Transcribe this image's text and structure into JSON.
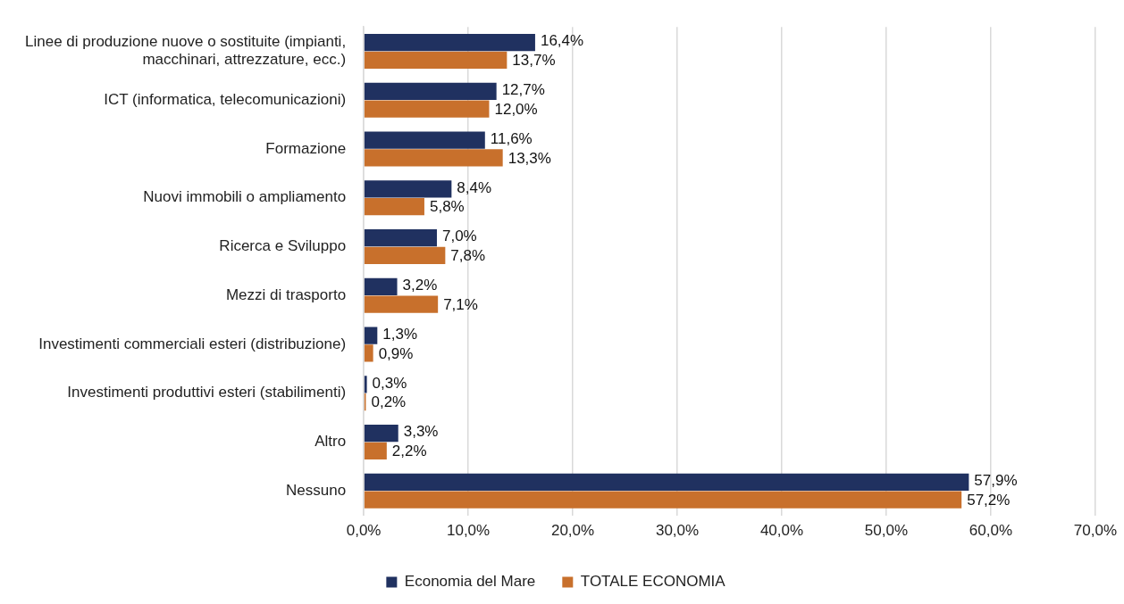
{
  "chart_data": {
    "type": "bar",
    "orientation": "horizontal",
    "categories": [
      "Linee di produzione nuove o sostituite (impianti, macchinari, attrezzature, ecc.)",
      "ICT (informatica, telecomunicazioni)",
      "Formazione",
      "Nuovi immobili o ampliamento",
      "Ricerca e Sviluppo",
      "Mezzi di trasporto",
      "Investimenti commerciali esteri (distribuzione)",
      "Investimenti produttivi esteri (stabilimenti)",
      "Altro",
      "Nessuno"
    ],
    "series": [
      {
        "name": "Economia del Mare",
        "color": "#203160",
        "values": [
          16.4,
          12.7,
          11.6,
          8.4,
          7.0,
          3.2,
          1.3,
          0.3,
          3.3,
          57.9
        ],
        "value_labels": [
          "16,4%",
          "12,7%",
          "11,6%",
          "8,4%",
          "7,0%",
          "3,2%",
          "1,3%",
          "0,3%",
          "3,3%",
          "57,9%"
        ]
      },
      {
        "name": "TOTALE ECONOMIA",
        "color": "#c8702c",
        "values": [
          13.7,
          12.0,
          13.3,
          5.8,
          7.8,
          7.1,
          0.9,
          0.2,
          2.2,
          57.2
        ],
        "value_labels": [
          "13,7%",
          "12,0%",
          "13,3%",
          "5,8%",
          "7,8%",
          "7,1%",
          "0,9%",
          "0,2%",
          "2,2%",
          "57,2%"
        ]
      }
    ],
    "xlim": [
      0,
      70
    ],
    "xticks": [
      {
        "value": 0,
        "label": "0,0%"
      },
      {
        "value": 10,
        "label": "10,0%"
      },
      {
        "value": 20,
        "label": "20,0%"
      },
      {
        "value": 30,
        "label": "30,0%"
      },
      {
        "value": 40,
        "label": "40,0%"
      },
      {
        "value": 50,
        "label": "50,0%"
      },
      {
        "value": 60,
        "label": "60,0%"
      },
      {
        "value": 70,
        "label": "70,0%"
      }
    ],
    "grid": "x",
    "legend": "bottom"
  }
}
